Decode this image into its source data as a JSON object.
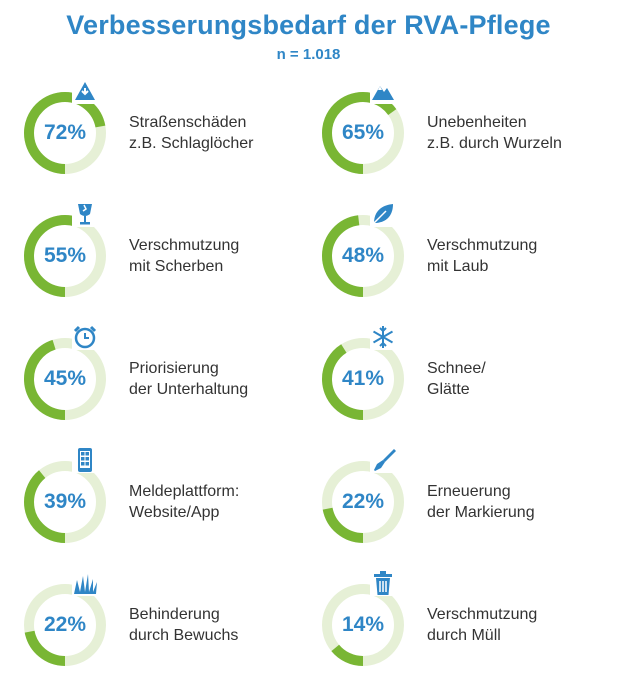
{
  "header": {
    "title": "Verbesserungsbedarf der RVA-Pflege",
    "subtitle": "n = 1.018"
  },
  "colors": {
    "accent": "#2f86c6",
    "ring_fill": "#79b634",
    "ring_track": "#e6f0d6",
    "text": "#333333"
  },
  "items": [
    {
      "pct_label": "72%",
      "line1": "Straßenschäden",
      "line2": "z.B. Schlaglöcher",
      "icon": "pothole-icon"
    },
    {
      "pct_label": "65%",
      "line1": "Unebenheiten",
      "line2": "z.B. durch Wurzeln",
      "icon": "mountain-icon"
    },
    {
      "pct_label": "55%",
      "line1": "Verschmutzung",
      "line2": "mit Scherben",
      "icon": "broken-glass-icon"
    },
    {
      "pct_label": "48%",
      "line1": "Verschmutzung",
      "line2": "mit Laub",
      "icon": "leaf-icon"
    },
    {
      "pct_label": "45%",
      "line1": "Priorisierung",
      "line2": "der Unterhaltung",
      "icon": "alarm-clock-icon"
    },
    {
      "pct_label": "41%",
      "line1": "Schnee/",
      "line2": "Glätte",
      "icon": "snowflake-icon"
    },
    {
      "pct_label": "39%",
      "line1": "Meldeplattform:",
      "line2": "Website/App",
      "icon": "smartphone-icon"
    },
    {
      "pct_label": "22%",
      "line1": "Erneuerung",
      "line2": "der Markierung",
      "icon": "paintbrush-icon"
    },
    {
      "pct_label": "22%",
      "line1": "Behinderung",
      "line2": "durch Bewuchs",
      "icon": "grass-icon"
    },
    {
      "pct_label": "14%",
      "line1": "Verschmutzung",
      "line2": "durch Müll",
      "icon": "trash-can-icon"
    }
  ],
  "chart_data": {
    "type": "donut",
    "title": "Verbesserungsbedarf der RVA-Pflege",
    "subtitle": "n = 1.018",
    "categories": [
      "Straßenschäden z.B. Schlaglöcher",
      "Unebenheiten z.B. durch Wurzeln",
      "Verschmutzung mit Scherben",
      "Verschmutzung mit Laub",
      "Priorisierung der Unterhaltung",
      "Schnee/ Glätte",
      "Meldeplattform: Website/App",
      "Erneuerung der Markierung",
      "Behinderung durch Bewuchs",
      "Verschmutzung durch Müll"
    ],
    "values": [
      72,
      65,
      55,
      48,
      45,
      41,
      39,
      22,
      22,
      14
    ],
    "unit": "%",
    "max": 100
  }
}
